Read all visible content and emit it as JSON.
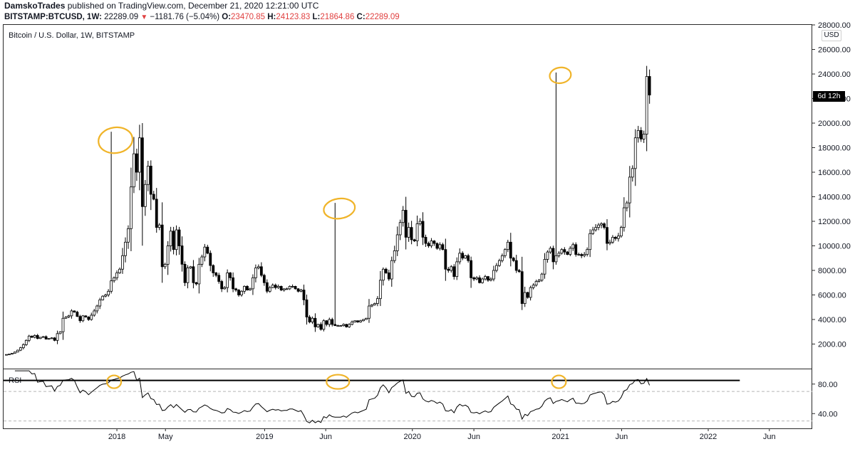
{
  "header": {
    "author": "DamskoTrades",
    "published": "published on TradingView.com, December 21, 2020 12:21:00 UTC",
    "symbol": "BITSTAMP:BTCUSD, 1W",
    "last": "22289.09",
    "change": "−1181.76 (−5.04%)",
    "o_label": "O:",
    "o_value": "23470.85",
    "h_label": "H:",
    "h_value": "24123.83",
    "l_label": "L:",
    "l_value": "21864.86",
    "c_label": "C:",
    "c_value": "22289.09"
  },
  "chart_title": "Bitcoin / U.S. Dollar, 1W, BITSTAMP",
  "currency": "USD",
  "countdown": "6d 12h",
  "rsi_label": "RSI",
  "colors": {
    "up": "#ffffff",
    "down": "#000000",
    "wick": "#000000",
    "highlight": "#f0b429"
  },
  "chart_data": [
    {
      "type": "candlestick",
      "title": "Bitcoin / U.S. Dollar, 1W, BITSTAMP",
      "ylim": [
        0,
        28000
      ],
      "y_ticks": [
        2000,
        4000,
        6000,
        8000,
        10000,
        12000,
        14000,
        16000,
        18000,
        20000,
        22000,
        24000,
        26000,
        28000
      ],
      "x_tick_labels": [
        "2018",
        "May",
        "2019",
        "Jun",
        "2020",
        "Jun",
        "2021",
        "Jun",
        "2022",
        "Jun"
      ],
      "x_tick_dates": [
        "2018-01-01",
        "2018-05-01",
        "2019-01-01",
        "2019-06-01",
        "2020-01-01",
        "2020-06-01",
        "2021-01-01",
        "2021-06-01",
        "2022-01-01",
        "2022-06-01"
      ],
      "xlim": [
        "2017-03-27",
        "2022-09-15"
      ],
      "start_date": "2017-04-03",
      "weekly_close": [
        1150,
        1180,
        1250,
        1350,
        1500,
        1700,
        1950,
        2300,
        2650,
        2550,
        2700,
        2450,
        2550,
        2600,
        2400,
        2450,
        2500,
        2300,
        2850,
        3000,
        4100,
        4200,
        4300,
        4700,
        4600,
        4250,
        3900,
        4300,
        4200,
        4000,
        4350,
        4700,
        5100,
        5600,
        5900,
        6000,
        6300,
        7150,
        7400,
        7800,
        8100,
        9200,
        10300,
        11400,
        14800,
        17500,
        16000,
        18800,
        13200,
        15000,
        16500,
        14200,
        13800,
        11500,
        11700,
        8300,
        8500,
        10000,
        11200,
        9700,
        11300,
        10000,
        8500,
        7000,
        8200,
        8300,
        7000,
        6900,
        8500,
        9100,
        9900,
        9400,
        8400,
        7800,
        7600,
        7100,
        6500,
        6600,
        7800,
        7400,
        6500,
        6400,
        6000,
        6300,
        6700,
        6400,
        6500,
        7400,
        8200,
        8300,
        7600,
        7000,
        6300,
        6600,
        6800,
        6600,
        6700,
        6400,
        6500,
        6500,
        6700,
        6700,
        6500,
        6300,
        6400,
        5600,
        4200,
        3800,
        4100,
        3400,
        3600,
        3200,
        3900,
        3600,
        4000,
        3600,
        3500,
        3500,
        3500,
        3600,
        3400,
        3600,
        3800,
        3900,
        3800,
        3900,
        4000,
        4100,
        5100,
        5200,
        5300,
        5700,
        7200,
        8100,
        7800,
        7300,
        8800,
        9600,
        10900,
        11900,
        12900,
        10700,
        11500,
        10500,
        10400,
        11800,
        12000,
        10700,
        10200,
        10000,
        10400,
        10200,
        9800,
        10100,
        9700,
        8100,
        8000,
        8300,
        7500,
        8700,
        9400,
        9000,
        9200,
        8800,
        7400,
        7300,
        7400,
        7000,
        7300,
        7500,
        7200,
        7300,
        8000,
        8400,
        8800,
        9200,
        9700,
        10300,
        9000,
        8800,
        8000,
        7900,
        5300,
        6200,
        5800,
        6600,
        6800,
        7100,
        7200,
        7700,
        8900,
        9500,
        9800,
        8700,
        9200,
        9400,
        9700,
        9500,
        9300,
        9800,
        10100,
        9300,
        9300,
        9200,
        9300,
        9700,
        11000,
        11300,
        11500,
        11700,
        11800,
        11500,
        10200,
        10300,
        10700,
        10600,
        10800,
        11500,
        13100,
        13500,
        15600,
        16300,
        18800,
        19400,
        18700,
        19100,
        23800,
        22289
      ],
      "highlight_peaks": [
        {
          "date": "2017-12-18",
          "price": 19300
        },
        {
          "date": "2019-06-24",
          "price": 13500
        },
        {
          "date": "2020-12-21",
          "price": 24123
        }
      ]
    },
    {
      "type": "line",
      "name": "RSI",
      "ylim": [
        20,
        100
      ],
      "y_ticks": [
        40,
        80
      ],
      "upper_band": 70,
      "lower_band": 30,
      "horizontal_line": 85,
      "end_date": "2022-03-20"
    }
  ]
}
